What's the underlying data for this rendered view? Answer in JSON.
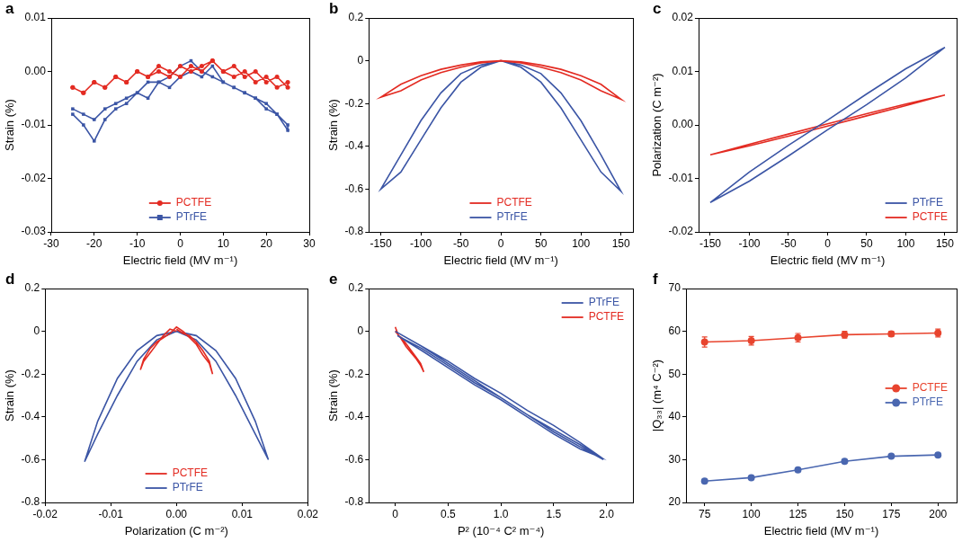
{
  "chart_data": [
    {
      "type": "scatter",
      "title": "a",
      "x_label": "Electric field (MV m⁻¹)",
      "y_label": "Strain (%)",
      "xlim": [
        -30,
        30
      ],
      "xticks": [
        -30,
        -20,
        -10,
        0,
        10,
        20,
        30
      ],
      "ylim": [
        -0.03,
        0.01
      ],
      "yticks": [
        -0.03,
        -0.02,
        -0.01,
        {
          "value": 0,
          "label": "0.00"
        },
        0.01
      ],
      "grid": false,
      "legend": "lower center",
      "series": [
        {
          "name": "PCTFE",
          "color": "#e32b22",
          "marker": "circle",
          "line_style": "solid",
          "x": [
            -25,
            -22.5,
            -20,
            -17.5,
            -15,
            -12.5,
            -10,
            -7.5,
            -5,
            -2.5,
            0,
            2.5,
            5,
            7.5,
            10,
            12.5,
            15,
            17.5,
            20,
            22.5,
            25,
            25,
            22.5,
            20,
            17.5,
            15,
            12.5,
            10,
            7.5,
            5,
            2.5,
            0,
            -2.5,
            -5,
            -7.5,
            -10,
            -12.5,
            -15,
            -17.5,
            -20,
            -22.5,
            -25
          ],
          "values": [
            -0.003,
            -0.004,
            -0.002,
            -0.003,
            -0.001,
            -0.002,
            0.0,
            -0.001,
            0.001,
            0.0,
            -0.001,
            0.001,
            0.0,
            0.002,
            0.0,
            -0.001,
            0.0,
            -0.002,
            -0.001,
            -0.003,
            -0.002,
            -0.003,
            -0.001,
            -0.002,
            0.0,
            -0.001,
            0.001,
            0.0,
            0.002,
            0.001,
            0.0,
            0.001,
            -0.001,
            0.0,
            -0.001,
            0.0,
            -0.002,
            -0.001,
            -0.003,
            -0.002,
            -0.004,
            -0.003
          ]
        },
        {
          "name": "PTrFE",
          "color": "#3b55a5",
          "marker": "square",
          "line_style": "solid",
          "x": [
            -25,
            -22.5,
            -20,
            -17.5,
            -15,
            -12.5,
            -10,
            -7.5,
            -5,
            -2.5,
            0,
            2.5,
            5,
            7.5,
            10,
            12.5,
            15,
            17.5,
            20,
            22.5,
            25,
            25,
            22.5,
            20,
            17.5,
            15,
            12.5,
            10,
            7.5,
            5,
            2.5,
            0,
            -2.5,
            -5,
            -7.5,
            -10,
            -12.5,
            -15,
            -17.5,
            -20,
            -22.5,
            -25
          ],
          "values": [
            -0.008,
            -0.01,
            -0.013,
            -0.009,
            -0.007,
            -0.006,
            -0.004,
            -0.005,
            -0.002,
            -0.003,
            -0.001,
            0.0,
            -0.001,
            0.001,
            -0.002,
            -0.003,
            -0.004,
            -0.005,
            -0.006,
            -0.008,
            -0.01,
            -0.011,
            -0.008,
            -0.007,
            -0.005,
            -0.004,
            -0.003,
            -0.002,
            -0.001,
            0.0,
            0.002,
            0.001,
            -0.001,
            -0.002,
            -0.002,
            -0.004,
            -0.005,
            -0.006,
            -0.007,
            -0.009,
            -0.008,
            -0.007
          ]
        }
      ]
    },
    {
      "type": "line",
      "title": "b",
      "x_label": "Electric field (MV m⁻¹)",
      "y_label": "Strain (%)",
      "xlim": [
        -165,
        165
      ],
      "xticks": [
        -150,
        -100,
        -50,
        0,
        50,
        100,
        150
      ],
      "ylim": [
        -0.8,
        0.2
      ],
      "yticks": [
        -0.8,
        -0.6,
        -0.4,
        -0.2,
        0,
        0.2
      ],
      "grid": false,
      "legend": "lower center",
      "series": [
        {
          "name": "PCTFE",
          "color": "#e32b22",
          "marker": "none",
          "line_style": "solid",
          "x": [
            0,
            25,
            50,
            75,
            100,
            125,
            150,
            125,
            100,
            75,
            50,
            25,
            0,
            -25,
            -50,
            -75,
            -100,
            -125,
            -150,
            -125,
            -100,
            -75,
            -50,
            -25,
            0
          ],
          "values": [
            0,
            -0.005,
            -0.02,
            -0.04,
            -0.07,
            -0.11,
            -0.18,
            -0.14,
            -0.09,
            -0.055,
            -0.03,
            -0.01,
            0.0,
            -0.005,
            -0.02,
            -0.04,
            -0.07,
            -0.11,
            -0.17,
            -0.14,
            -0.09,
            -0.055,
            -0.03,
            -0.01,
            0.0
          ]
        },
        {
          "name": "PTrFE",
          "color": "#3b55a5",
          "marker": "none",
          "line_style": "solid",
          "x": [
            0,
            25,
            50,
            75,
            100,
            125,
            150,
            125,
            100,
            75,
            50,
            25,
            0,
            -25,
            -50,
            -75,
            -100,
            -125,
            -150,
            -125,
            -100,
            -75,
            -50,
            -25,
            0
          ],
          "values": [
            0,
            -0.02,
            -0.06,
            -0.15,
            -0.28,
            -0.44,
            -0.61,
            -0.52,
            -0.37,
            -0.22,
            -0.1,
            -0.03,
            0.0,
            -0.02,
            -0.06,
            -0.15,
            -0.28,
            -0.44,
            -0.6,
            -0.52,
            -0.37,
            -0.22,
            -0.1,
            -0.03,
            0.0
          ]
        }
      ]
    },
    {
      "type": "line",
      "title": "c",
      "x_label": "Electric field (MV m⁻¹)",
      "y_label": "Polarization (C m⁻²)",
      "xlim": [
        -165,
        165
      ],
      "xticks": [
        -150,
        -100,
        -50,
        0,
        50,
        100,
        150
      ],
      "ylim": [
        -0.02,
        0.02
      ],
      "yticks": [
        -0.02,
        -0.01,
        {
          "value": 0,
          "label": "0.00"
        },
        0.01,
        0.02
      ],
      "grid": false,
      "legend": "lower right",
      "series": [
        {
          "name": "PTrFE",
          "color": "#3b55a5",
          "marker": "none",
          "line_style": "solid",
          "x": [
            0,
            50,
            100,
            150,
            100,
            50,
            0,
            -50,
            -100,
            -150,
            -100,
            -50,
            0
          ],
          "values": [
            -0.0009,
            0.0038,
            0.0088,
            0.0145,
            0.0105,
            0.0058,
            0.0009,
            -0.0038,
            -0.0088,
            -0.0145,
            -0.0105,
            -0.0058,
            -0.0009
          ]
        },
        {
          "name": "PCTFE",
          "color": "#e32b22",
          "marker": "none",
          "line_style": "solid",
          "x": [
            0,
            50,
            100,
            150,
            100,
            50,
            0,
            -50,
            -100,
            -150,
            -100,
            -50,
            0
          ],
          "values": [
            -0.0002,
            0.0017,
            0.0036,
            0.0056,
            0.0039,
            0.0021,
            0.0002,
            -0.0017,
            -0.0036,
            -0.0056,
            -0.0039,
            -0.0021,
            -0.0002
          ]
        }
      ]
    },
    {
      "type": "line",
      "title": "d",
      "x_label": "Polarization (C m⁻²)",
      "y_label": "Strain (%)",
      "xlim": [
        -0.02,
        0.02
      ],
      "xticks": [
        -0.02,
        -0.01,
        {
          "value": 0,
          "label": "0.00"
        },
        0.01,
        0.02
      ],
      "ylim": [
        -0.8,
        0.2
      ],
      "yticks": [
        -0.8,
        -0.6,
        -0.4,
        -0.2,
        0,
        0.2
      ],
      "grid": false,
      "legend": "lower center",
      "series": [
        {
          "name": "PCTFE",
          "color": "#e32b22",
          "marker": "none",
          "line_style": "solid",
          "x": [
            0,
            0.001,
            0.002,
            0.003,
            0.004,
            0.005,
            0.0055,
            0.005,
            0.004,
            0.003,
            0.002,
            0.001,
            0,
            -0.001,
            -0.002,
            -0.003,
            -0.004,
            -0.005,
            -0.0055,
            -0.005,
            -0.004,
            -0.003,
            -0.002,
            -0.001,
            0
          ],
          "values": [
            0.01,
            -0.01,
            -0.02,
            -0.05,
            -0.09,
            -0.14,
            -0.2,
            -0.15,
            -0.11,
            -0.06,
            -0.03,
            0.0,
            0.02,
            -0.01,
            -0.03,
            -0.05,
            -0.08,
            -0.13,
            -0.18,
            -0.14,
            -0.1,
            -0.06,
            -0.02,
            0.01,
            0.0
          ]
        },
        {
          "name": "PTrFE",
          "color": "#3b55a5",
          "marker": "none",
          "line_style": "solid",
          "x": [
            0,
            0.003,
            0.006,
            0.009,
            0.012,
            0.014,
            0.012,
            0.009,
            0.006,
            0.003,
            0,
            -0.003,
            -0.006,
            -0.009,
            -0.012,
            -0.014,
            -0.012,
            -0.009,
            -0.006,
            -0.003,
            0
          ],
          "values": [
            0,
            -0.02,
            -0.09,
            -0.22,
            -0.42,
            -0.6,
            -0.48,
            -0.3,
            -0.14,
            -0.04,
            0,
            -0.02,
            -0.09,
            -0.22,
            -0.42,
            -0.61,
            -0.48,
            -0.3,
            -0.14,
            -0.04,
            0
          ]
        }
      ]
    },
    {
      "type": "line",
      "title": "e",
      "x_label": "P² (10⁻⁴ C² m⁻⁴)",
      "y_label": "Strain (%)",
      "xlim": [
        -0.25,
        2.25
      ],
      "xticks": [
        0,
        0.5,
        {
          "value": 1,
          "label": "1.0"
        },
        1.5,
        {
          "value": 2,
          "label": "2.0"
        }
      ],
      "ylim": [
        -0.8,
        0.2
      ],
      "yticks": [
        -0.8,
        -0.6,
        -0.4,
        -0.2,
        0,
        0.2
      ],
      "grid": false,
      "legend": "upper right",
      "series": [
        {
          "name": "PTrFE",
          "color": "#3b55a5",
          "marker": "none",
          "line_style": "solid",
          "x": [
            0,
            0.25,
            0.5,
            0.75,
            1.0,
            1.25,
            1.5,
            1.75,
            1.95,
            1.75,
            1.5,
            1.25,
            1.0,
            0.75,
            0.5,
            0.25,
            0.02,
            0.25,
            0.5,
            0.75,
            1.0,
            1.25,
            1.5,
            1.75,
            1.97,
            1.75,
            1.5,
            1.25,
            1.0,
            0.75,
            0.5,
            0.25,
            0
          ],
          "values": [
            0,
            -0.07,
            -0.14,
            -0.22,
            -0.29,
            -0.37,
            -0.44,
            -0.52,
            -0.59,
            -0.55,
            -0.48,
            -0.4,
            -0.32,
            -0.25,
            -0.17,
            -0.09,
            -0.02,
            -0.08,
            -0.16,
            -0.24,
            -0.31,
            -0.39,
            -0.46,
            -0.53,
            -0.6,
            -0.54,
            -0.47,
            -0.39,
            -0.31,
            -0.23,
            -0.15,
            -0.07,
            0.0
          ]
        },
        {
          "name": "PCTFE",
          "color": "#e32b22",
          "marker": "none",
          "line_style": "solid",
          "x": [
            0,
            0.03,
            0.06,
            0.09,
            0.12,
            0.15,
            0.18,
            0.21,
            0.24,
            0.27,
            0.24,
            0.2,
            0.15,
            0.1,
            0.05,
            0
          ],
          "values": [
            0.02,
            -0.02,
            -0.03,
            -0.05,
            -0.07,
            -0.09,
            -0.11,
            -0.13,
            -0.15,
            -0.19,
            -0.16,
            -0.13,
            -0.1,
            -0.07,
            -0.03,
            0.0
          ]
        }
      ]
    },
    {
      "type": "line",
      "title": "f",
      "x_label": "Electric field (MV m⁻¹)",
      "y_label": "|Q₃₃| (m⁴ C⁻²)",
      "xlim": [
        65,
        210
      ],
      "xticks": [
        75,
        100,
        125,
        150,
        175,
        200
      ],
      "ylim": [
        20,
        70
      ],
      "yticks": [
        20,
        30,
        40,
        50,
        60,
        70
      ],
      "grid": false,
      "legend": "center right",
      "series": [
        {
          "name": "PCTFE",
          "color": "#e8442e",
          "marker": "circle",
          "line_style": "solid",
          "x": [
            75,
            100,
            125,
            150,
            175,
            200
          ],
          "values": [
            57.5,
            57.8,
            58.5,
            59.2,
            59.4,
            59.6
          ],
          "errors": [
            1.2,
            1.0,
            1.0,
            0.8,
            0.6,
            0.9
          ]
        },
        {
          "name": "PTrFE",
          "color": "#4a67b0",
          "marker": "circle",
          "line_style": "solid",
          "x": [
            75,
            100,
            125,
            150,
            175,
            200
          ],
          "values": [
            25.0,
            25.8,
            27.6,
            29.6,
            30.8,
            31.1
          ],
          "errors": [
            0.4,
            0.4,
            0.4,
            0.4,
            0.4,
            0.4
          ]
        }
      ]
    }
  ]
}
